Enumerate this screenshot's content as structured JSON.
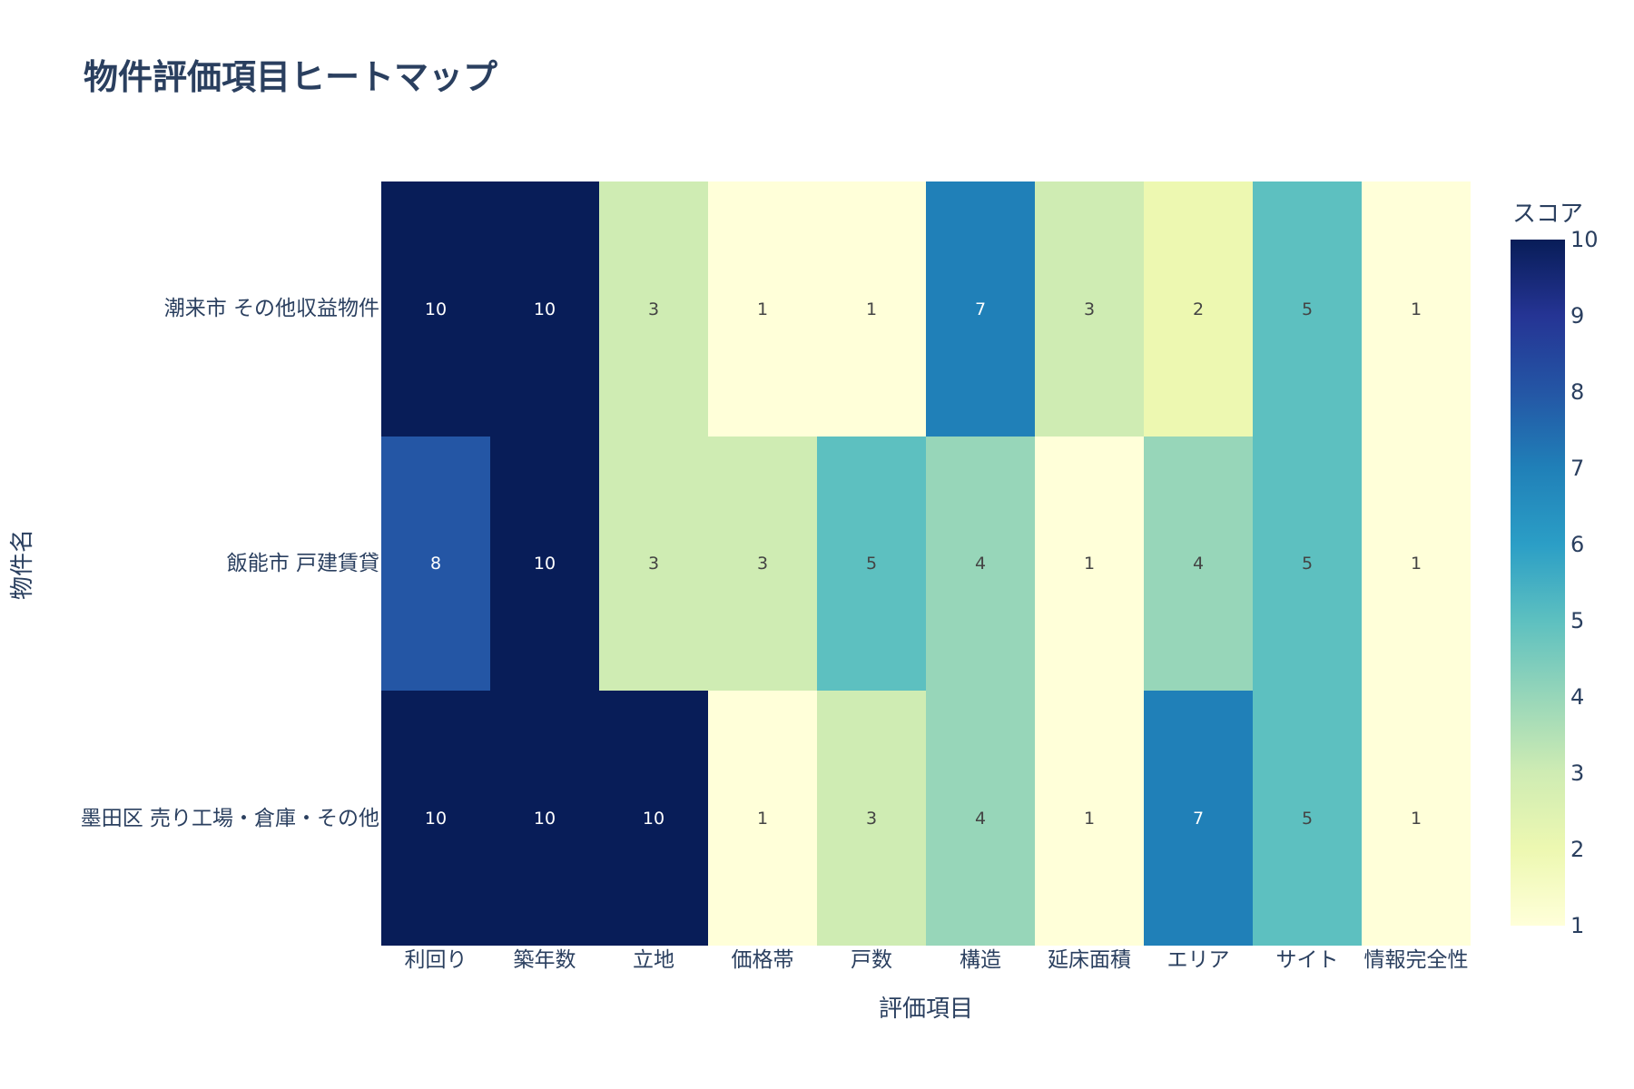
{
  "title": "物件評価項目ヒートマップ",
  "chart_data": {
    "type": "heatmap",
    "title": "物件評価項目ヒートマップ",
    "xlabel": "評価項目",
    "ylabel": "物件名",
    "x": [
      "利回り",
      "築年数",
      "立地",
      "価格帯",
      "戸数",
      "構造",
      "延床面積",
      "エリア",
      "サイト",
      "情報完全性"
    ],
    "y": [
      "潮来市 その他収益物件",
      "飯能市 戸建賃貸",
      "墨田区 売り工場・倉庫・その他"
    ],
    "z": [
      [
        10,
        10,
        3,
        1,
        1,
        7,
        3,
        2,
        5,
        1
      ],
      [
        8,
        10,
        3,
        3,
        5,
        4,
        1,
        4,
        5,
        1
      ],
      [
        10,
        10,
        10,
        1,
        3,
        4,
        1,
        7,
        5,
        1
      ]
    ],
    "text_annotations": true,
    "colorscale": "YlGnBu",
    "zrange": [
      1,
      10
    ],
    "colorbar": {
      "title": "スコア",
      "ticks": [
        "10",
        "9",
        "8",
        "7",
        "6",
        "5",
        "4",
        "3",
        "2",
        "1"
      ]
    }
  },
  "colors": {
    "scale": {
      "1": "#ffffd9",
      "2": "#edf8b1",
      "3": "#cfecb3",
      "4": "#97d6b9",
      "5": "#5dc0c0",
      "6": "#2b9ec6",
      "7": "#2080b8",
      "8": "#2456a5",
      "9": "#253494",
      "10": "#081d58"
    },
    "text_dark": "#444444",
    "text_light": "#ffffff",
    "axis_text": "#2a3f5f"
  }
}
